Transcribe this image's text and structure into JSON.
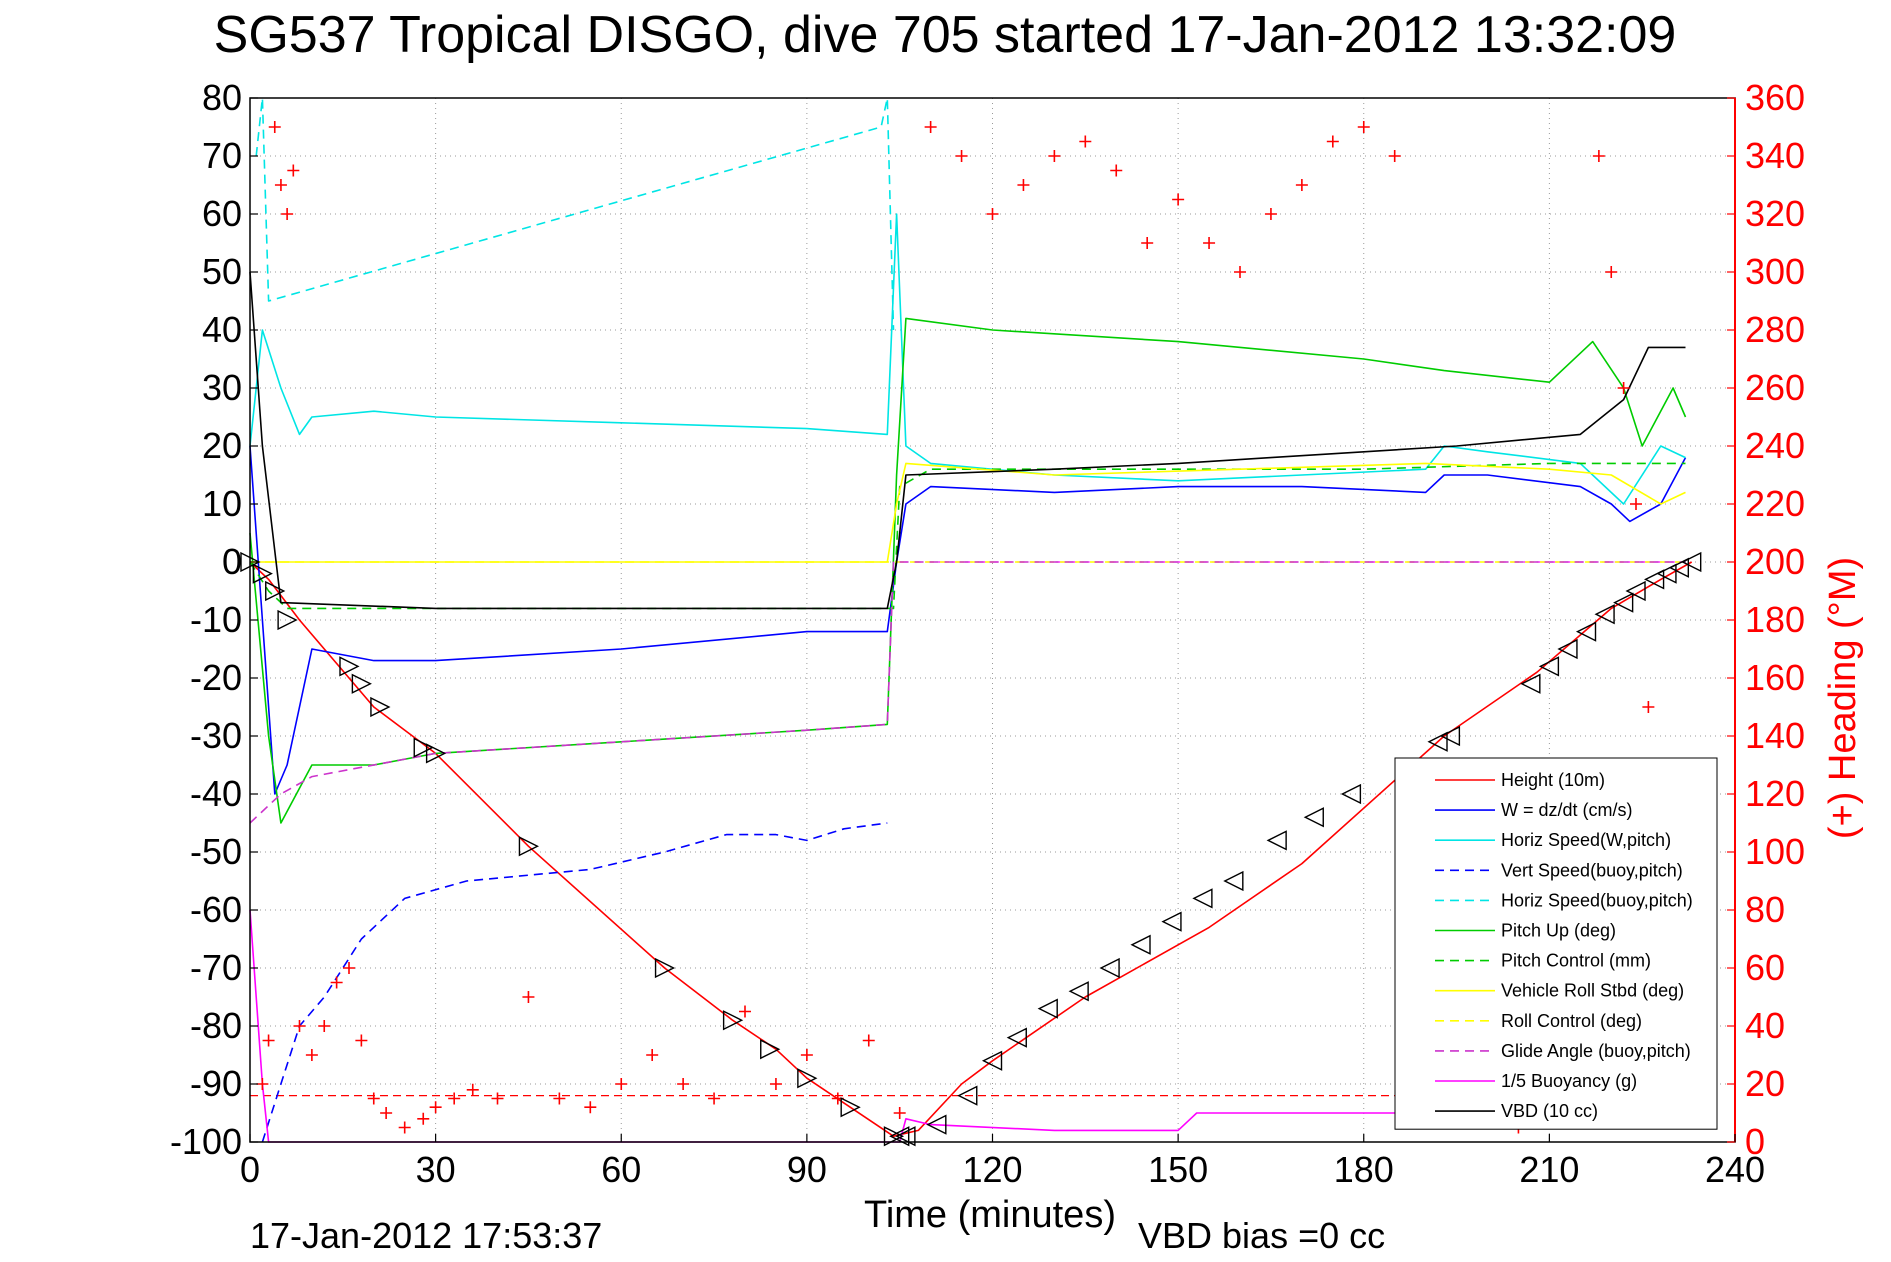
{
  "chart_data": {
    "type": "line",
    "title": "SG537 Tropical DISGO, dive 705 started 17-Jan-2012 13:32:09",
    "xlabel": "Time (minutes)",
    "ylabel_right": "(+) Heading (°M)",
    "xlim": [
      0,
      240
    ],
    "ylim": [
      -100,
      80
    ],
    "ylim_right": [
      0,
      360
    ],
    "x_ticks": [
      "0",
      "30",
      "60",
      "90",
      "120",
      "150",
      "180",
      "210",
      "240"
    ],
    "y_ticks": [
      "80",
      "70",
      "60",
      "50",
      "40",
      "30",
      "20",
      "10",
      "0",
      "-10",
      "-20",
      "-30",
      "-40",
      "-50",
      "-60",
      "-70",
      "-80",
      "-90",
      "-100"
    ],
    "y_ticks_right": [
      "360",
      "340",
      "320",
      "300",
      "280",
      "260",
      "240",
      "220",
      "200",
      "180",
      "160",
      "140",
      "120",
      "100",
      "80",
      "60",
      "40",
      "20",
      "0"
    ],
    "grid": true,
    "legend_position": "bottom-right",
    "footer_left": "17-Jan-2012 17:53:37",
    "footer_right": "VBD bias =0 cc",
    "series": [
      {
        "name": "Height (10m)",
        "color": "#ff0000",
        "dash": "solid",
        "x": [
          0,
          3,
          8,
          20,
          30,
          45,
          67,
          78,
          85,
          90,
          97,
          104,
          108,
          115,
          120,
          135,
          155,
          170,
          193,
          208,
          220,
          228,
          233
        ],
        "y": [
          0,
          -3,
          -10,
          -25,
          -33,
          -49,
          -70,
          -79,
          -84,
          -89,
          -94,
          -99,
          -98,
          -90,
          -86,
          -75,
          -63,
          -52,
          -30,
          -19,
          -8,
          -3,
          0
        ]
      },
      {
        "name": "W = dz/dt (cm/s)",
        "color": "#0000ff",
        "dash": "solid",
        "x": [
          0,
          2,
          4,
          6,
          10,
          20,
          30,
          60,
          90,
          103,
          104.5,
          106,
          110,
          130,
          150,
          170,
          190,
          193,
          200,
          215,
          220,
          223,
          228,
          232
        ],
        "y": [
          20,
          -10,
          -40,
          -35,
          -15,
          -17,
          -17,
          -15,
          -12,
          -12,
          0,
          10,
          13,
          12,
          13,
          13,
          12,
          15,
          15,
          13,
          10,
          7,
          10,
          18
        ]
      },
      {
        "name": "Horiz Speed(W,pitch)",
        "color": "#00e5e5",
        "dash": "solid",
        "x": [
          0,
          2,
          5,
          8,
          10,
          20,
          30,
          60,
          90,
          103,
          104.5,
          106,
          110,
          130,
          150,
          170,
          190,
          193,
          200,
          215,
          222,
          228,
          232
        ],
        "y": [
          20,
          40,
          30,
          22,
          25,
          26,
          25,
          24,
          23,
          22,
          60,
          20,
          17,
          15,
          14,
          15,
          16,
          20,
          19,
          17,
          10,
          20,
          18
        ]
      },
      {
        "name": "Vert Speed(buoy,pitch)",
        "color": "#0000ff",
        "dash": "dashed",
        "x": [
          2,
          5,
          8,
          12,
          18,
          25,
          35,
          55,
          67,
          77,
          85,
          90,
          96,
          103
        ],
        "y": [
          -100,
          -90,
          -80,
          -75,
          -65,
          -58,
          -55,
          -53,
          -50,
          -47,
          -47,
          -48,
          -46,
          -45
        ]
      },
      {
        "name": "Horiz Speed(buoy,pitch)",
        "color": "#00e5e5",
        "dash": "dashed",
        "x": [
          1,
          2,
          3,
          102,
          103,
          104
        ],
        "y": [
          70,
          80,
          45,
          75,
          80,
          40
        ]
      },
      {
        "name": "Pitch Up (deg)",
        "color": "#00cc00",
        "dash": "solid",
        "x": [
          0,
          3,
          5,
          10,
          20,
          30,
          60,
          90,
          103,
          104.5,
          106,
          120,
          150,
          180,
          193,
          210,
          217,
          222,
          225,
          230,
          232
        ],
        "y": [
          5,
          -30,
          -45,
          -35,
          -35,
          -33,
          -31,
          -29,
          -28,
          15,
          42,
          40,
          38,
          35,
          33,
          31,
          38,
          30,
          20,
          30,
          25
        ]
      },
      {
        "name": "Pitch Control (mm)",
        "color": "#00cc00",
        "dash": "dashed",
        "x": [
          0,
          3,
          6,
          90,
          104,
          105,
          110,
          180,
          210,
          232
        ],
        "y": [
          0,
          -5,
          -8,
          -8,
          -8,
          13,
          16,
          16,
          17,
          17
        ]
      },
      {
        "name": "Vehicle Roll Stbd (deg)",
        "color": "#ffff00",
        "dash": "solid",
        "x": [
          0,
          5,
          10,
          40,
          70,
          90,
          103,
          104.5,
          106,
          130,
          160,
          190,
          210,
          220,
          228,
          232
        ],
        "y": [
          0,
          0,
          0,
          0,
          0,
          0,
          0,
          10,
          17,
          15,
          16,
          17,
          16,
          15,
          10,
          12
        ]
      },
      {
        "name": "Roll Control (deg)",
        "color": "#ffff00",
        "dash": "dashed",
        "x": [
          0,
          100,
          104,
          105,
          232
        ],
        "y": [
          0,
          0,
          0,
          0,
          0
        ]
      },
      {
        "name": "Glide Angle (buoy,pitch)",
        "color": "#cc33cc",
        "dash": "dashed",
        "x": [
          0,
          5,
          10,
          30,
          60,
          90,
          103,
          104,
          105,
          232
        ],
        "y": [
          -45,
          -40,
          -37,
          -33,
          -31,
          -29,
          -28,
          0,
          0,
          0
        ]
      },
      {
        "name": "1/5 Buoyancy (g)",
        "color": "#ff00ff",
        "dash": "solid",
        "x": [
          0,
          1,
          2,
          3,
          105,
          106,
          110,
          130,
          150,
          152,
          153,
          190
        ],
        "y": [
          -60,
          -75,
          -90,
          -100,
          -100,
          -96,
          -97,
          -98,
          -98,
          -96,
          -95,
          -95
        ]
      },
      {
        "name": "VBD (10 cc)",
        "color": "#000000",
        "dash": "solid",
        "x": [
          0,
          2,
          5,
          30,
          60,
          90,
          103,
          104.5,
          106,
          130,
          150,
          165,
          180,
          195,
          205,
          215,
          222,
          226,
          232
        ],
        "y": [
          50,
          20,
          -7,
          -8,
          -8,
          -8,
          -8,
          0,
          15,
          16,
          17,
          18,
          19,
          20,
          21,
          22,
          28,
          37,
          37
        ]
      }
    ],
    "heading_series": {
      "color": "#ff0000",
      "marker": "+",
      "x": [
        2,
        3,
        4,
        5,
        6,
        7,
        8,
        10,
        12,
        14,
        16,
        18,
        20,
        22,
        25,
        28,
        30,
        33,
        36,
        40,
        45,
        50,
        55,
        60,
        65,
        70,
        75,
        80,
        85,
        90,
        95,
        100,
        105,
        110,
        115,
        120,
        125,
        130,
        135,
        140,
        145,
        150,
        155,
        160,
        165,
        170,
        175,
        180,
        185,
        190,
        195,
        200,
        205,
        210,
        215,
        218,
        220,
        222,
        224,
        226
      ],
      "y": [
        20,
        35,
        350,
        330,
        320,
        335,
        40,
        30,
        40,
        55,
        60,
        35,
        15,
        10,
        5,
        8,
        12,
        15,
        18,
        15,
        50,
        15,
        12,
        20,
        30,
        20,
        15,
        45,
        20,
        30,
        15,
        35,
        10,
        350,
        340,
        320,
        330,
        340,
        345,
        335,
        310,
        325,
        310,
        300,
        320,
        330,
        345,
        350,
        340,
        20,
        15,
        10,
        5,
        12,
        20,
        340,
        300,
        260,
        220,
        150
      ]
    },
    "reference_lines": [
      {
        "color": "#ff0000",
        "dash": "dashed",
        "y": -92,
        "x_range": [
          0,
          190
        ]
      },
      {
        "color": "#ff00ff",
        "dash": "dashed",
        "y": 0,
        "x_range": [
          105,
          232
        ]
      }
    ],
    "marker_series": {
      "color": "#000000",
      "marker": "triangle",
      "x": [
        0,
        2,
        4,
        6,
        16,
        18,
        21,
        28,
        30,
        45,
        67,
        78,
        84,
        90,
        97,
        104,
        105,
        106,
        111,
        116,
        120,
        124,
        129,
        134,
        139,
        144,
        149,
        154,
        159,
        166,
        172,
        178,
        192,
        194,
        207,
        210,
        213,
        216,
        219,
        222,
        224,
        227,
        229,
        231,
        233
      ],
      "y": [
        0,
        -2,
        -5,
        -10,
        -18,
        -21,
        -25,
        -32,
        -33,
        -49,
        -70,
        -79,
        -84,
        -89,
        -94,
        -99,
        -99,
        -99,
        -97,
        -92,
        -86,
        -82,
        -77,
        -74,
        -70,
        -66,
        -62,
        -58,
        -55,
        -48,
        -44,
        -40,
        -31,
        -30,
        -21,
        -18,
        -15,
        -12,
        -9,
        -7,
        -5,
        -3,
        -2,
        -1,
        0
      ]
    }
  }
}
